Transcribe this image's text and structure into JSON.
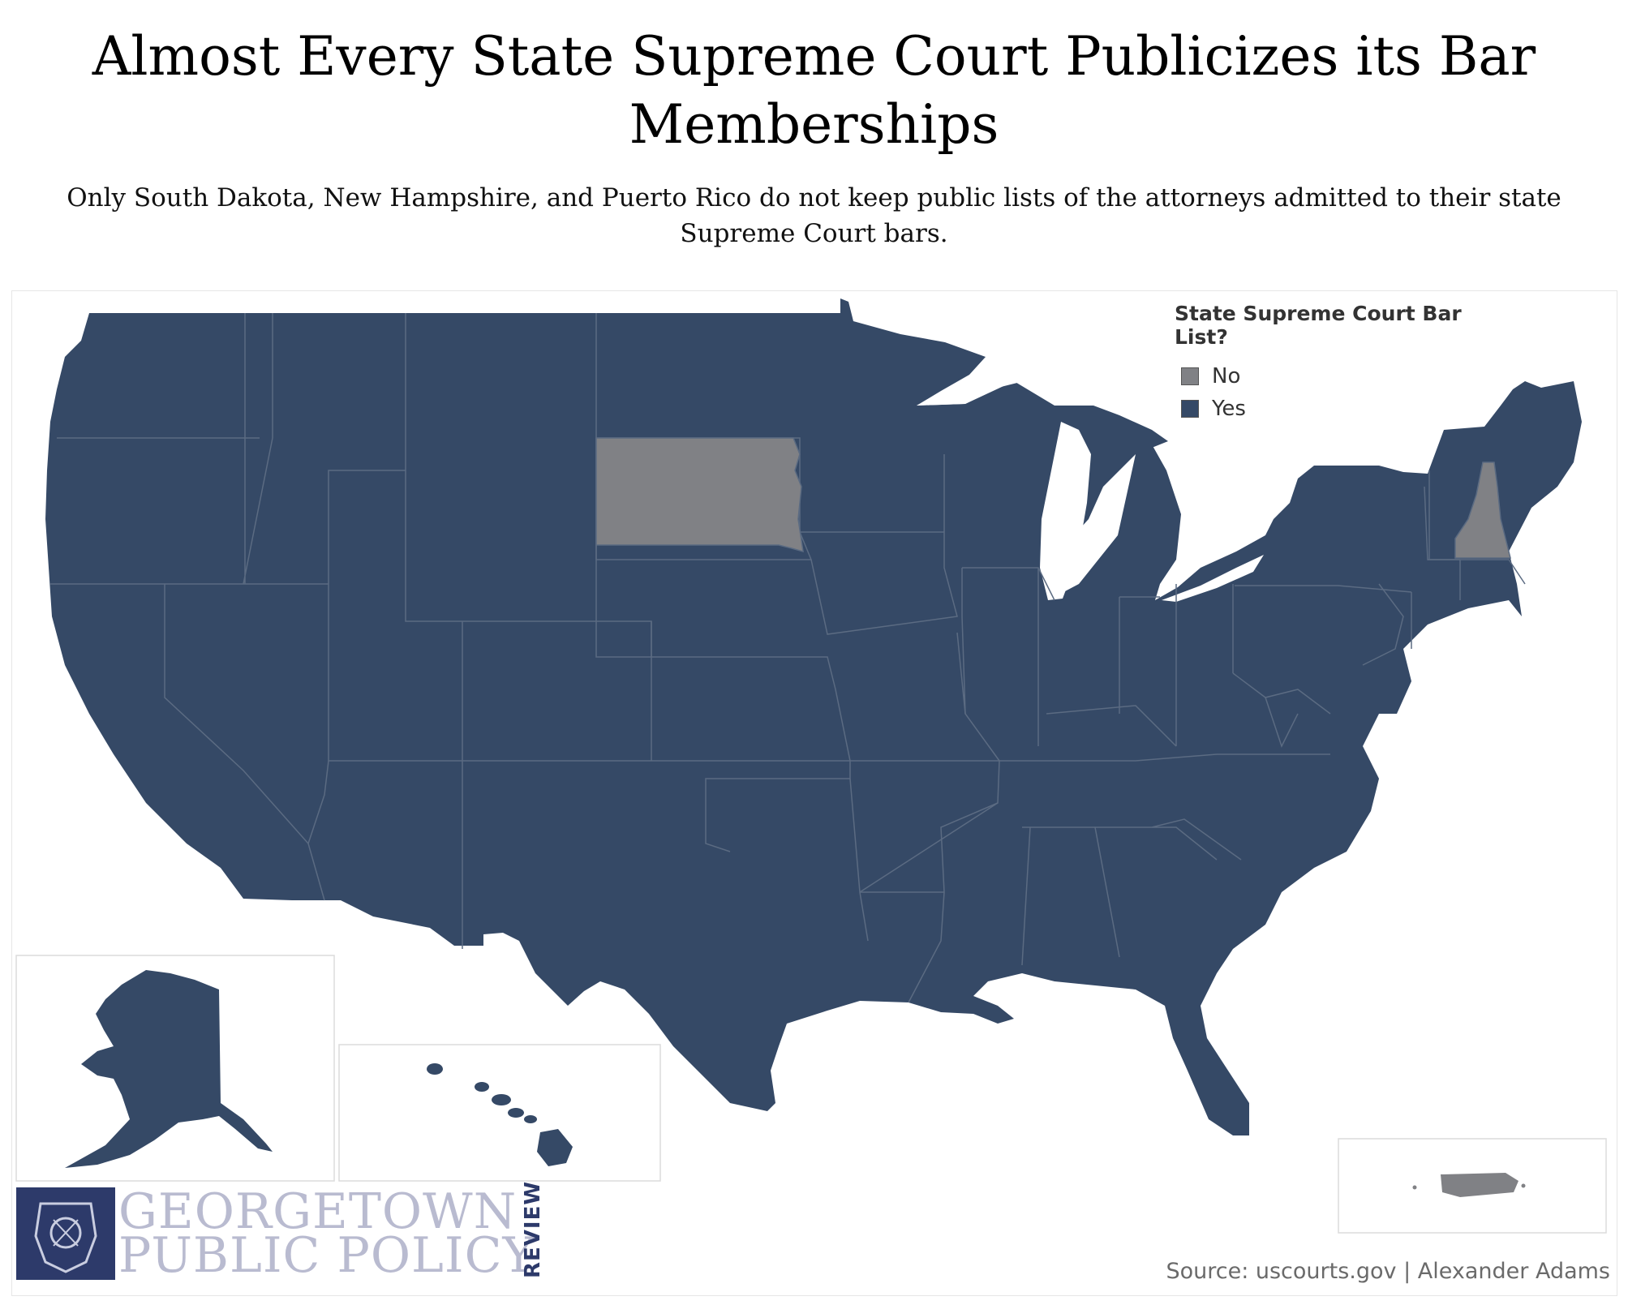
{
  "title": "Almost Every State Supreme Court Publicizes its Bar Memberships",
  "subtitle": "Only South Dakota, New Hampshire, and Puerto Rico do not keep public lists of the attorneys admitted to their state Supreme Court bars.",
  "legend": {
    "title": "State Supreme Court Bar List?",
    "items": [
      {
        "label": "No",
        "color": "#808185"
      },
      {
        "label": "Yes",
        "color": "#354966"
      }
    ]
  },
  "colors": {
    "yes": "#354966",
    "no": "#808185",
    "border": "#5b6b82"
  },
  "map_data": {
    "no": [
      "South Dakota",
      "New Hampshire",
      "Puerto Rico"
    ]
  },
  "logo": {
    "line1": "GEORGETOWN",
    "line2": "PUBLIC POLICY",
    "review": "REVIEW"
  },
  "source": "Source: uscourts.gov | Alexander Adams"
}
